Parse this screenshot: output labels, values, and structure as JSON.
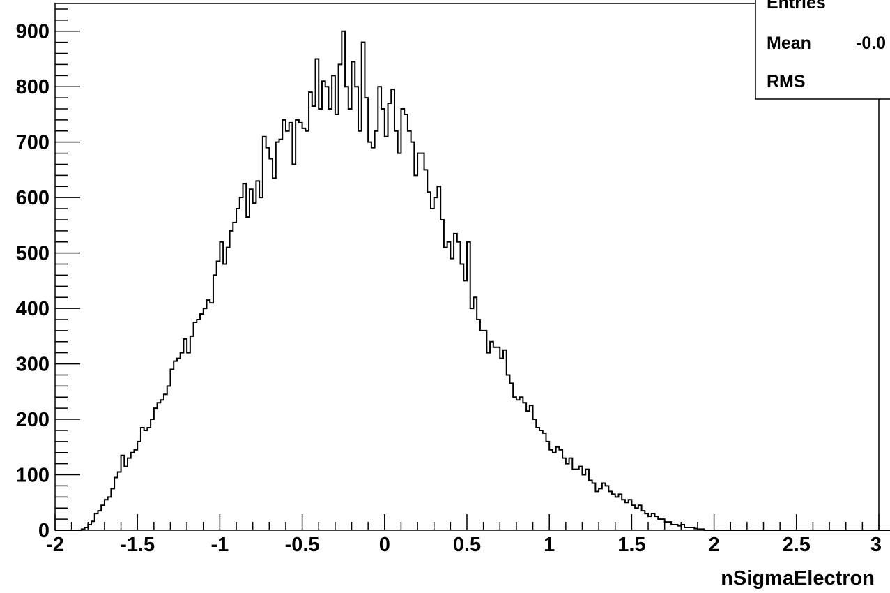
{
  "chart_data": {
    "type": "histogram",
    "xlabel": "nSigmaElectron",
    "ylabel": "",
    "xlim": [
      -2,
      3
    ],
    "ylim": [
      0,
      950
    ],
    "x_ticks": [
      "-2",
      "-1.5",
      "-1",
      "-0.5",
      "0",
      "0.5",
      "1",
      "1.5",
      "2",
      "2.5",
      "3"
    ],
    "y_ticks": [
      "0",
      "100",
      "200",
      "300",
      "400",
      "500",
      "600",
      "700",
      "800",
      "900"
    ],
    "bin_width": 0.02,
    "bin_start": -2.0,
    "values": [
      0,
      0,
      0,
      0,
      0,
      0,
      0,
      0,
      2,
      5,
      10,
      16,
      30,
      35,
      45,
      55,
      60,
      75,
      95,
      105,
      135,
      115,
      130,
      140,
      145,
      160,
      185,
      180,
      185,
      200,
      220,
      230,
      235,
      245,
      260,
      290,
      305,
      310,
      320,
      345,
      320,
      350,
      375,
      380,
      390,
      400,
      415,
      410,
      460,
      485,
      520,
      480,
      510,
      540,
      555,
      580,
      600,
      625,
      565,
      615,
      590,
      630,
      600,
      710,
      690,
      670,
      635,
      700,
      705,
      740,
      720,
      735,
      660,
      740,
      735,
      725,
      720,
      790,
      765,
      850,
      760,
      810,
      800,
      760,
      820,
      750,
      840,
      900,
      800,
      760,
      845,
      800,
      720,
      880,
      780,
      700,
      690,
      720,
      800,
      760,
      710,
      770,
      795,
      720,
      680,
      760,
      750,
      720,
      700,
      640,
      680,
      680,
      650,
      610,
      580,
      600,
      620,
      560,
      510,
      520,
      490,
      535,
      520,
      480,
      450,
      520,
      400,
      420,
      380,
      360,
      360,
      320,
      340,
      330,
      330,
      310,
      325,
      280,
      265,
      240,
      235,
      240,
      230,
      215,
      225,
      200,
      185,
      180,
      175,
      160,
      145,
      140,
      150,
      145,
      130,
      120,
      130,
      110,
      110,
      115,
      100,
      110,
      90,
      85,
      70,
      75,
      85,
      80,
      70,
      65,
      60,
      65,
      55,
      50,
      55,
      45,
      40,
      45,
      35,
      30,
      25,
      30,
      25,
      20,
      20,
      15,
      15,
      10,
      10,
      8,
      10,
      5,
      5,
      5,
      3,
      2,
      2,
      0,
      0,
      0,
      0,
      0,
      0,
      0,
      0,
      0,
      0,
      0,
      0,
      0,
      0,
      0,
      0,
      0,
      0,
      0,
      0,
      0,
      0,
      0,
      0,
      0,
      0,
      0,
      0,
      0,
      0,
      0,
      0,
      0,
      0,
      0,
      0,
      0,
      0,
      0,
      0,
      0,
      0,
      0,
      0,
      0,
      0,
      0,
      0,
      0,
      0,
      0,
      0,
      0,
      0,
      0,
      0,
      0,
      0
    ],
    "stats_box": [
      {
        "label": "Entries",
        "value": ""
      },
      {
        "label": "Mean",
        "value": "-0.0"
      },
      {
        "label": "RMS",
        "value": ""
      }
    ]
  }
}
